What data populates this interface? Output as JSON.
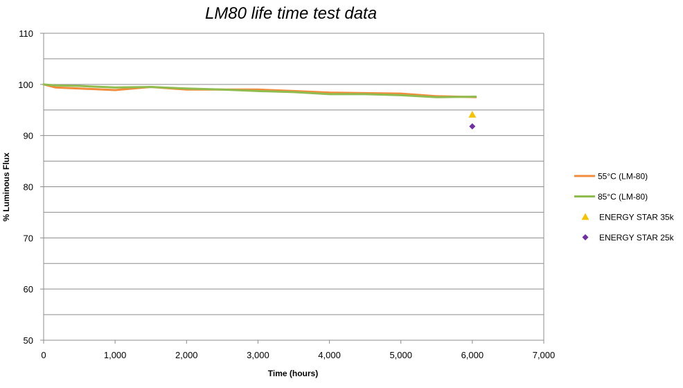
{
  "chart_data": {
    "type": "line",
    "title": "LM80 life time test data",
    "xlabel": "Time (hours)",
    "ylabel": "% Luminous Flux",
    "xlim": [
      0,
      7000
    ],
    "ylim": [
      50,
      110
    ],
    "x_ticks": [
      0,
      1000,
      2000,
      3000,
      4000,
      5000,
      6000,
      7000
    ],
    "x_tick_labels": [
      "0",
      "1,000",
      "2,000",
      "3,000",
      "4,000",
      "5,000",
      "6,000",
      "7,000"
    ],
    "y_ticks": [
      50,
      60,
      70,
      80,
      90,
      100,
      110
    ],
    "y_tick_labels": [
      "50",
      "60",
      "70",
      "80",
      "90",
      "100",
      "110"
    ],
    "y_minor_step": 5,
    "grid": true,
    "legend_position": "right",
    "series": [
      {
        "name": "55°C (LM-80)",
        "kind": "line",
        "color": "#f28c3c",
        "x": [
          0,
          168,
          500,
          1000,
          1500,
          2000,
          2500,
          3000,
          3500,
          4000,
          4500,
          5000,
          5500,
          6048
        ],
        "y": [
          100,
          99.4,
          99.2,
          98.9,
          99.5,
          99.0,
          99.0,
          99.0,
          98.7,
          98.4,
          98.3,
          98.2,
          97.7,
          97.5
        ]
      },
      {
        "name": "85°C (LM-80)",
        "kind": "line",
        "color": "#8fbb4f",
        "x": [
          0,
          168,
          500,
          1000,
          1500,
          2000,
          2500,
          3000,
          3500,
          4000,
          4500,
          5000,
          5500,
          6048
        ],
        "y": [
          100,
          99.8,
          99.7,
          99.4,
          99.5,
          99.2,
          99.0,
          98.7,
          98.5,
          98.1,
          98.1,
          97.9,
          97.5,
          97.6
        ]
      },
      {
        "name": "ENERGY STAR 35k",
        "kind": "marker",
        "marker": "triangle",
        "color": "#f5c400",
        "x": [
          6000
        ],
        "y": [
          94.1
        ]
      },
      {
        "name": "ENERGY STAR 25k",
        "kind": "marker",
        "marker": "diamond",
        "color": "#7030a0",
        "x": [
          6000
        ],
        "y": [
          91.8
        ]
      }
    ]
  }
}
